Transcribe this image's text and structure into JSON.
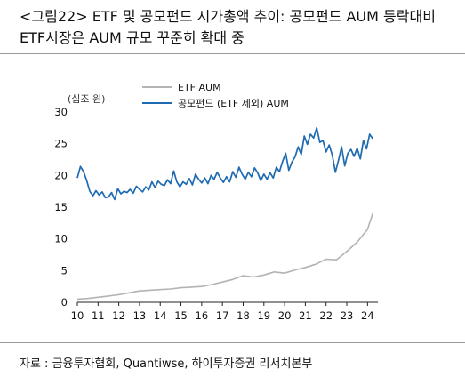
{
  "header": {
    "title_line1": "<그림22> ETF 및 공모펀드 시가총액 추이: 공모펀드 AUM 등락대비",
    "title_line2": "ETF시장은 AUM 규모 꾸준히 확대 중"
  },
  "source": "자료 : 금융투자협회, Quantiwse, 하이투자증권 리서치본부",
  "chart_data": {
    "type": "line",
    "ylabel": "(십조 원)",
    "ylim": [
      0,
      30
    ],
    "yticks": [
      0,
      5,
      10,
      15,
      20,
      25,
      30
    ],
    "xlim": [
      2010.0,
      2024.5
    ],
    "xticks": [
      2010,
      2011,
      2012,
      2013,
      2014,
      2015,
      2016,
      2017,
      2018,
      2019,
      2020,
      2021,
      2022,
      2023,
      2024
    ],
    "xtick_labels": [
      "10",
      "11",
      "12",
      "13",
      "14",
      "15",
      "16",
      "17",
      "18",
      "19",
      "20",
      "21",
      "22",
      "23",
      "24"
    ],
    "legend_position": "top",
    "series": [
      {
        "name": "ETF AUM",
        "color": "#b3b3b3",
        "x": [
          2010.0,
          2010.5,
          2011.0,
          2011.5,
          2012.0,
          2012.5,
          2013.0,
          2013.5,
          2014.0,
          2014.5,
          2015.0,
          2015.5,
          2016.0,
          2016.5,
          2017.0,
          2017.5,
          2018.0,
          2018.5,
          2019.0,
          2019.5,
          2020.0,
          2020.5,
          2021.0,
          2021.5,
          2022.0,
          2022.5,
          2023.0,
          2023.5,
          2024.0,
          2024.25
        ],
        "y": [
          0.5,
          0.6,
          0.8,
          1.0,
          1.2,
          1.5,
          1.8,
          1.9,
          2.0,
          2.1,
          2.3,
          2.4,
          2.5,
          2.8,
          3.2,
          3.6,
          4.2,
          4.0,
          4.3,
          4.8,
          4.6,
          5.1,
          5.5,
          6.0,
          6.8,
          6.7,
          8.0,
          9.5,
          11.5,
          14.0
        ]
      },
      {
        "name": "공모펀드 (ETF 제외) AUM",
        "color": "#1f6bb2",
        "x": [
          2010.0,
          2010.15,
          2010.3,
          2010.45,
          2010.6,
          2010.75,
          2010.9,
          2011.05,
          2011.2,
          2011.35,
          2011.5,
          2011.65,
          2011.8,
          2011.95,
          2012.1,
          2012.25,
          2012.4,
          2012.55,
          2012.7,
          2012.85,
          2013.0,
          2013.15,
          2013.3,
          2013.45,
          2013.6,
          2013.75,
          2013.9,
          2014.05,
          2014.2,
          2014.35,
          2014.5,
          2014.65,
          2014.8,
          2014.95,
          2015.1,
          2015.25,
          2015.4,
          2015.55,
          2015.7,
          2015.85,
          2016.0,
          2016.15,
          2016.3,
          2016.45,
          2016.6,
          2016.75,
          2016.9,
          2017.05,
          2017.2,
          2017.35,
          2017.5,
          2017.65,
          2017.8,
          2017.95,
          2018.1,
          2018.25,
          2018.4,
          2018.55,
          2018.7,
          2018.85,
          2019.0,
          2019.15,
          2019.3,
          2019.45,
          2019.6,
          2019.75,
          2019.9,
          2020.05,
          2020.2,
          2020.35,
          2020.5,
          2020.65,
          2020.8,
          2020.95,
          2021.1,
          2021.25,
          2021.4,
          2021.55,
          2021.7,
          2021.85,
          2022.0,
          2022.15,
          2022.3,
          2022.45,
          2022.6,
          2022.75,
          2022.9,
          2023.05,
          2023.2,
          2023.35,
          2023.5,
          2023.65,
          2023.8,
          2023.95,
          2024.1,
          2024.25
        ],
        "y": [
          19.6,
          21.4,
          20.6,
          19.2,
          17.5,
          16.8,
          17.6,
          16.9,
          17.4,
          16.5,
          16.6,
          17.3,
          16.2,
          17.9,
          17.1,
          17.5,
          17.3,
          17.8,
          17.2,
          18.3,
          17.8,
          17.4,
          18.2,
          17.7,
          19.0,
          18.1,
          19.1,
          18.6,
          18.4,
          19.3,
          18.7,
          20.7,
          19.0,
          18.2,
          19.0,
          18.6,
          19.5,
          18.5,
          20.2,
          19.4,
          18.8,
          19.6,
          18.7,
          20.0,
          19.4,
          20.5,
          19.6,
          18.9,
          19.8,
          19.0,
          20.6,
          19.7,
          21.3,
          20.2,
          19.4,
          20.5,
          19.8,
          21.2,
          20.4,
          19.2,
          20.2,
          19.4,
          20.4,
          19.6,
          21.3,
          20.6,
          22.2,
          23.5,
          20.8,
          22.1,
          22.9,
          24.5,
          23.3,
          26.2,
          24.9,
          26.5,
          25.9,
          27.5,
          25.2,
          25.5,
          23.7,
          24.8,
          23.2,
          20.5,
          22.4,
          24.5,
          21.5,
          23.5,
          24.1,
          23.0,
          24.3,
          22.6,
          25.5,
          24.2,
          26.5,
          25.8
        ]
      }
    ]
  }
}
